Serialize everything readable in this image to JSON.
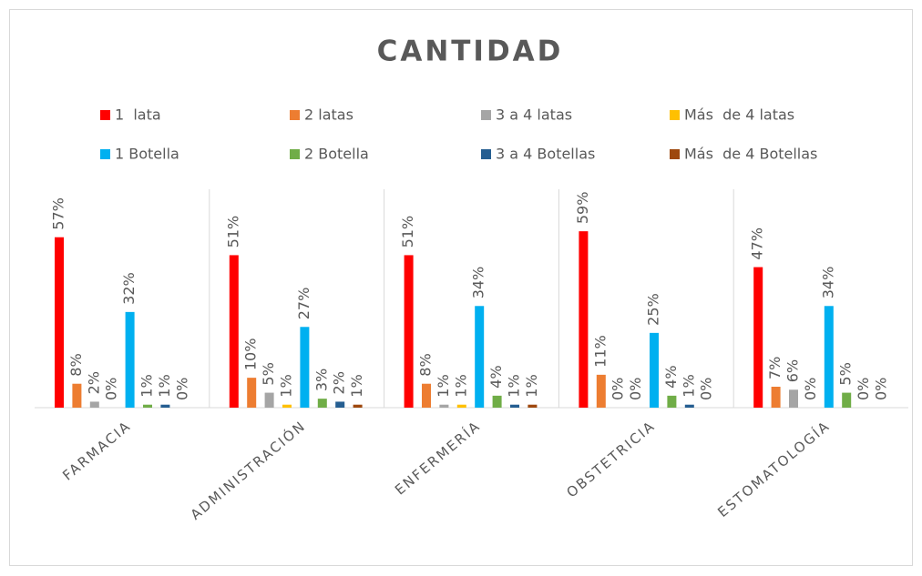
{
  "chart_data": {
    "type": "bar",
    "title": "CANTIDAD",
    "categories": [
      "FARMACIA",
      "ADMINISTRACIÓN",
      "ENFERMERÍA",
      "OBSTETRICIA",
      "ESTOMATOLOGÍA"
    ],
    "ylim": [
      0,
      70
    ],
    "legend": "top",
    "series": [
      {
        "name": "1  lata",
        "color": "#ff0000",
        "values": [
          57,
          51,
          51,
          59,
          47
        ],
        "value_labels": [
          "57%",
          "51%",
          "51%",
          "59%",
          "47%"
        ]
      },
      {
        "name": "2 latas",
        "color": "#ed7d31",
        "values": [
          8,
          10,
          8,
          11,
          7
        ],
        "value_labels": [
          "8%",
          "10%",
          "8%",
          "11%",
          "7%"
        ]
      },
      {
        "name": "3 a 4 latas",
        "color": "#a5a5a5",
        "values": [
          2,
          5,
          1,
          0,
          6
        ],
        "value_labels": [
          "2%",
          "5%",
          "1%",
          "0%",
          "6%"
        ]
      },
      {
        "name": "Más  de 4 latas",
        "color": "#ffc000",
        "values": [
          0,
          1,
          1,
          0,
          0
        ],
        "value_labels": [
          "0%",
          "1%",
          "1%",
          "0%",
          "0%"
        ]
      },
      {
        "name": "1 Botella",
        "color": "#00b0f0",
        "values": [
          32,
          27,
          34,
          25,
          34
        ],
        "value_labels": [
          "32%",
          "27%",
          "34%",
          "25%",
          "34%"
        ]
      },
      {
        "name": "2 Botella",
        "color": "#70ad47",
        "values": [
          1,
          3,
          4,
          4,
          5
        ],
        "value_labels": [
          "1%",
          "3%",
          "4%",
          "4%",
          "5%"
        ]
      },
      {
        "name": "3 a 4 Botellas",
        "color": "#255e91",
        "values": [
          1,
          2,
          1,
          1,
          0
        ],
        "value_labels": [
          "1%",
          "2%",
          "1%",
          "1%",
          "0%"
        ]
      },
      {
        "name": "Más  de 4 Botellas",
        "color": "#9e480e",
        "values": [
          0,
          1,
          1,
          0,
          0
        ],
        "value_labels": [
          "0%",
          "1%",
          "1%",
          "0%",
          "0%"
        ]
      }
    ]
  }
}
